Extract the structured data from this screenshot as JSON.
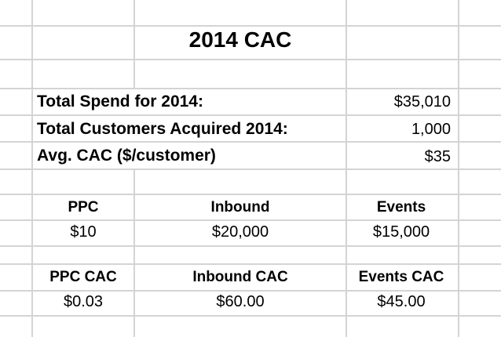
{
  "sheet": {
    "title": "2014 CAC",
    "summary": [
      {
        "label": "Total Spend for 2014:",
        "value": "$35,010"
      },
      {
        "label": "Total Customers Acquired 2014:",
        "value": "1,000"
      },
      {
        "label": "Avg. CAC ($/customer)",
        "value": "$35"
      }
    ],
    "channels": [
      {
        "name": "PPC",
        "spend": "$10"
      },
      {
        "name": "Inbound",
        "spend": "$20,000"
      },
      {
        "name": "Events",
        "spend": "$15,000"
      }
    ],
    "channel_cac": [
      {
        "name": "PPC CAC",
        "value": "$0.03"
      },
      {
        "name": "Inbound CAC",
        "value": "$60.00"
      },
      {
        "name": "Events CAC",
        "value": "$45.00"
      }
    ]
  }
}
